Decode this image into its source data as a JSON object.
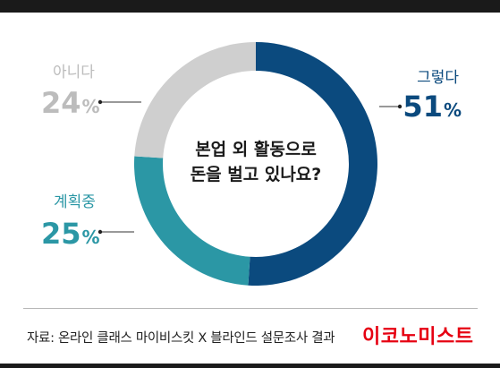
{
  "chart_data": {
    "type": "pie",
    "subtype": "donut",
    "center_text": [
      "본업 외 활동으로",
      "돈을 벌고 있나요?"
    ],
    "slices": [
      {
        "label": "그렇다",
        "value": 51,
        "value_text": "51",
        "color": "#0b4a7e"
      },
      {
        "label": "계획중",
        "value": 25,
        "value_text": "25",
        "color": "#2b97a5"
      },
      {
        "label": "아니다",
        "value": 24,
        "value_text": "24",
        "color": "#cfcfcf"
      }
    ],
    "unit": "%",
    "label_colors": [
      "#0b4a7e",
      "#2b97a5",
      "#bcbcbc"
    ]
  },
  "footer": {
    "source": "자료: 온라인 클래스 마이비스킷 X 블라인드 설문조사 결과",
    "brand": "이코노미스트",
    "brand_color": "#e60012"
  }
}
